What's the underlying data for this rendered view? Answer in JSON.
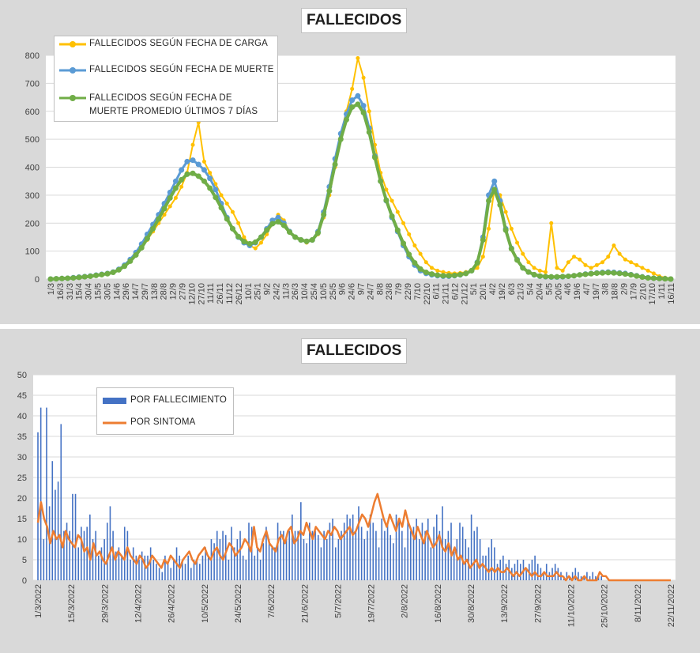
{
  "colors": {
    "carga": "#ffc000",
    "muerte": "#5b9bd5",
    "promedio": "#70ad47",
    "bars": "#4472c4",
    "sintoma": "#ed7d31",
    "grid": "#d9d9d9"
  },
  "chart_data": [
    {
      "type": "line",
      "title": "FALLECIDOS",
      "ylim": [
        0,
        800
      ],
      "yticks": [
        "0",
        "100",
        "200",
        "300",
        "400",
        "500",
        "600",
        "700",
        "800"
      ],
      "xticks": [
        "1/3",
        "16/3",
        "31/3",
        "15/4",
        "30/4",
        "15/5",
        "30/5",
        "14/6",
        "29/6",
        "14/7",
        "29/7",
        "13/8",
        "28/8",
        "12/9",
        "27/9",
        "12/10",
        "27/10",
        "11/11",
        "26/11",
        "11/12",
        "26/12",
        "10/1",
        "25/1",
        "9/2",
        "24/2",
        "11/3",
        "26/3",
        "10/4",
        "25/4",
        "10/5",
        "25/5",
        "9/6",
        "24/6",
        "9/7",
        "24/7",
        "8/8",
        "23/8",
        "7/9",
        "22/9",
        "7/10",
        "22/10",
        "6/11",
        "21/11",
        "6/12",
        "21/12",
        "5/1",
        "20/1",
        "4/2",
        "19/2",
        "6/3",
        "21/3",
        "5/4",
        "20/4",
        "5/5",
        "20/5",
        "4/6",
        "19/6",
        "4/7",
        "19/7",
        "3/8",
        "18/8",
        "2/9",
        "17/9",
        "2/10",
        "17/10",
        "1/11",
        "16/11"
      ],
      "legend_position": "top-left",
      "series": [
        {
          "name": "FALLECIDOS SEGÚN FECHA DE CARGA",
          "values": [
            0,
            1,
            2,
            4,
            6,
            8,
            10,
            12,
            15,
            18,
            20,
            25,
            35,
            50,
            65,
            85,
            110,
            140,
            170,
            200,
            230,
            260,
            290,
            330,
            380,
            480,
            560,
            420,
            380,
            340,
            300,
            270,
            240,
            200,
            150,
            120,
            110,
            130,
            160,
            200,
            230,
            210,
            170,
            150,
            140,
            130,
            140,
            160,
            220,
            300,
            400,
            520,
            600,
            680,
            790,
            720,
            600,
            480,
            380,
            320,
            280,
            240,
            200,
            160,
            120,
            90,
            60,
            40,
            30,
            25,
            22,
            20,
            22,
            25,
            30,
            40,
            80,
            180,
            320,
            300,
            240,
            180,
            130,
            90,
            60,
            40,
            30,
            25,
            200,
            40,
            30,
            60,
            80,
            70,
            50,
            40,
            50,
            60,
            80,
            120,
            90,
            70,
            60,
            50,
            40,
            30,
            20,
            10,
            5,
            3
          ]
        },
        {
          "name": "FALLECIDOS SEGÚN FECHA DE MUERTE",
          "values": [
            0,
            1,
            2,
            3,
            5,
            7,
            9,
            11,
            14,
            17,
            20,
            25,
            35,
            50,
            70,
            95,
            125,
            160,
            195,
            230,
            270,
            310,
            350,
            390,
            420,
            425,
            410,
            390,
            360,
            320,
            270,
            220,
            180,
            150,
            130,
            120,
            130,
            150,
            180,
            210,
            220,
            200,
            170,
            150,
            140,
            135,
            140,
            170,
            240,
            330,
            430,
            520,
            590,
            640,
            655,
            620,
            540,
            440,
            350,
            280,
            220,
            170,
            120,
            80,
            50,
            30,
            20,
            15,
            12,
            10,
            10,
            12,
            15,
            20,
            30,
            60,
            150,
            300,
            350,
            280,
            180,
            110,
            70,
            40,
            25,
            15,
            10,
            8,
            7,
            7,
            8,
            10,
            12,
            15,
            18,
            20,
            22,
            24,
            25,
            24,
            22,
            20,
            16,
            12,
            8,
            5,
            3,
            2,
            1,
            0
          ]
        },
        {
          "name": "FALLECIDOS SEGÚN FECHA DE MUERTE PROMEDIO ÚLTIMOS 7 DÍAS",
          "values": [
            0,
            1,
            2,
            3,
            4,
            6,
            8,
            10,
            13,
            16,
            19,
            24,
            33,
            46,
            64,
            86,
            112,
            145,
            180,
            215,
            252,
            290,
            325,
            355,
            375,
            378,
            368,
            350,
            325,
            292,
            255,
            215,
            180,
            152,
            134,
            126,
            132,
            150,
            175,
            198,
            205,
            192,
            168,
            150,
            140,
            135,
            140,
            165,
            230,
            315,
            410,
            500,
            570,
            615,
            625,
            595,
            525,
            435,
            350,
            282,
            225,
            175,
            128,
            88,
            58,
            36,
            24,
            18,
            14,
            12,
            12,
            13,
            16,
            20,
            30,
            58,
            140,
            280,
            320,
            265,
            175,
            108,
            68,
            40,
            25,
            16,
            11,
            9,
            8,
            8,
            9,
            10,
            12,
            15,
            17,
            19,
            21,
            22,
            23,
            22,
            20,
            18,
            15,
            11,
            7,
            4,
            3,
            2,
            1,
            0
          ]
        }
      ]
    },
    {
      "type": "bar",
      "title": "FALLECIDOS",
      "ylim": [
        0,
        50
      ],
      "yticks": [
        "0",
        "5",
        "10",
        "15",
        "20",
        "25",
        "30",
        "35",
        "40",
        "45",
        "50"
      ],
      "xticks": [
        "1/3/2022",
        "15/3/2022",
        "29/3/2022",
        "12/4/2022",
        "26/4/2022",
        "10/5/2022",
        "24/5/2022",
        "7/6/2022",
        "21/6/2022",
        "5/7/2022",
        "19/7/2022",
        "2/8/2022",
        "16/8/2022",
        "30/8/2022",
        "13/9/2022",
        "27/9/2022",
        "11/10/2022",
        "25/10/2022",
        "8/11/2022",
        "22/11/2022"
      ],
      "legend_position": "top-left",
      "series": [
        {
          "name": "POR FALLECIMIENTO",
          "type": "bar",
          "values": [
            36,
            42,
            10,
            42,
            18,
            29,
            22,
            24,
            38,
            12,
            14,
            12,
            21,
            21,
            8,
            13,
            12,
            13,
            16,
            10,
            12,
            6,
            8,
            10,
            14,
            18,
            12,
            7,
            8,
            6,
            13,
            12,
            5,
            8,
            6,
            5,
            7,
            6,
            6,
            8,
            5,
            4,
            3,
            2,
            6,
            4,
            3,
            5,
            8,
            6,
            5,
            4,
            6,
            3,
            5,
            5,
            4,
            6,
            8,
            6,
            10,
            9,
            12,
            10,
            12,
            11,
            5,
            13,
            8,
            10,
            12,
            6,
            5,
            14,
            13,
            6,
            8,
            5,
            9,
            13,
            10,
            8,
            8,
            14,
            12,
            12,
            10,
            12,
            16,
            12,
            12,
            19,
            10,
            9,
            14,
            12,
            12,
            11,
            8,
            12,
            10,
            14,
            15,
            8,
            10,
            12,
            14,
            16,
            15,
            16,
            12,
            18,
            13,
            10,
            12,
            16,
            14,
            12,
            8,
            15,
            12,
            14,
            11,
            9,
            16,
            15,
            12,
            8,
            15,
            12,
            13,
            15,
            10,
            14,
            12,
            15,
            8,
            13,
            16,
            12,
            18,
            10,
            12,
            14,
            7,
            10,
            14,
            13,
            10,
            8,
            16,
            12,
            13,
            10,
            6,
            6,
            8,
            10,
            8,
            4,
            5,
            6,
            4,
            5,
            3,
            4,
            5,
            4,
            5,
            3,
            4,
            5,
            6,
            4,
            3,
            2,
            4,
            2,
            3,
            4,
            3,
            2,
            1,
            2,
            1,
            2,
            3,
            2,
            1,
            1,
            2,
            1,
            2,
            1,
            1,
            1,
            0,
            0,
            0,
            0,
            0,
            0,
            0,
            0,
            0,
            0,
            0,
            0,
            0,
            0,
            0,
            0,
            0,
            0,
            0,
            0,
            0,
            0,
            0,
            0
          ]
        },
        {
          "name": "POR SINTOMA",
          "type": "line",
          "values": [
            14,
            19,
            15,
            13,
            9,
            12,
            10,
            11,
            8,
            12,
            10,
            9,
            8,
            11,
            10,
            7,
            8,
            5,
            9,
            6,
            7,
            5,
            4,
            6,
            8,
            5,
            7,
            6,
            5,
            8,
            6,
            5,
            4,
            6,
            5,
            3,
            4,
            6,
            5,
            4,
            3,
            5,
            4,
            6,
            5,
            4,
            3,
            5,
            6,
            7,
            5,
            4,
            6,
            7,
            8,
            6,
            5,
            7,
            8,
            6,
            5,
            7,
            9,
            8,
            6,
            7,
            8,
            10,
            9,
            7,
            13,
            8,
            7,
            10,
            12,
            9,
            8,
            7,
            10,
            11,
            9,
            12,
            13,
            9,
            10,
            12,
            11,
            14,
            12,
            10,
            13,
            12,
            11,
            10,
            12,
            11,
            13,
            12,
            10,
            11,
            12,
            13,
            11,
            12,
            14,
            16,
            15,
            13,
            16,
            19,
            21,
            18,
            15,
            13,
            16,
            14,
            12,
            15,
            13,
            17,
            14,
            12,
            10,
            13,
            11,
            9,
            12,
            10,
            8,
            9,
            11,
            8,
            7,
            9,
            6,
            8,
            5,
            6,
            4,
            5,
            3,
            4,
            5,
            3,
            4,
            3,
            2,
            3,
            2,
            3,
            2,
            2,
            3,
            2,
            1,
            2,
            1,
            2,
            3,
            2,
            1,
            2,
            1,
            1,
            2,
            1,
            1,
            1,
            2,
            1,
            1,
            0,
            1,
            0,
            1,
            0,
            0,
            1,
            0,
            0,
            0,
            0,
            2,
            1,
            1,
            0,
            0,
            0,
            0,
            0,
            0,
            0,
            0,
            0,
            0,
            0,
            0,
            0,
            0,
            0,
            0,
            0,
            0,
            0,
            0,
            0
          ]
        }
      ]
    }
  ]
}
